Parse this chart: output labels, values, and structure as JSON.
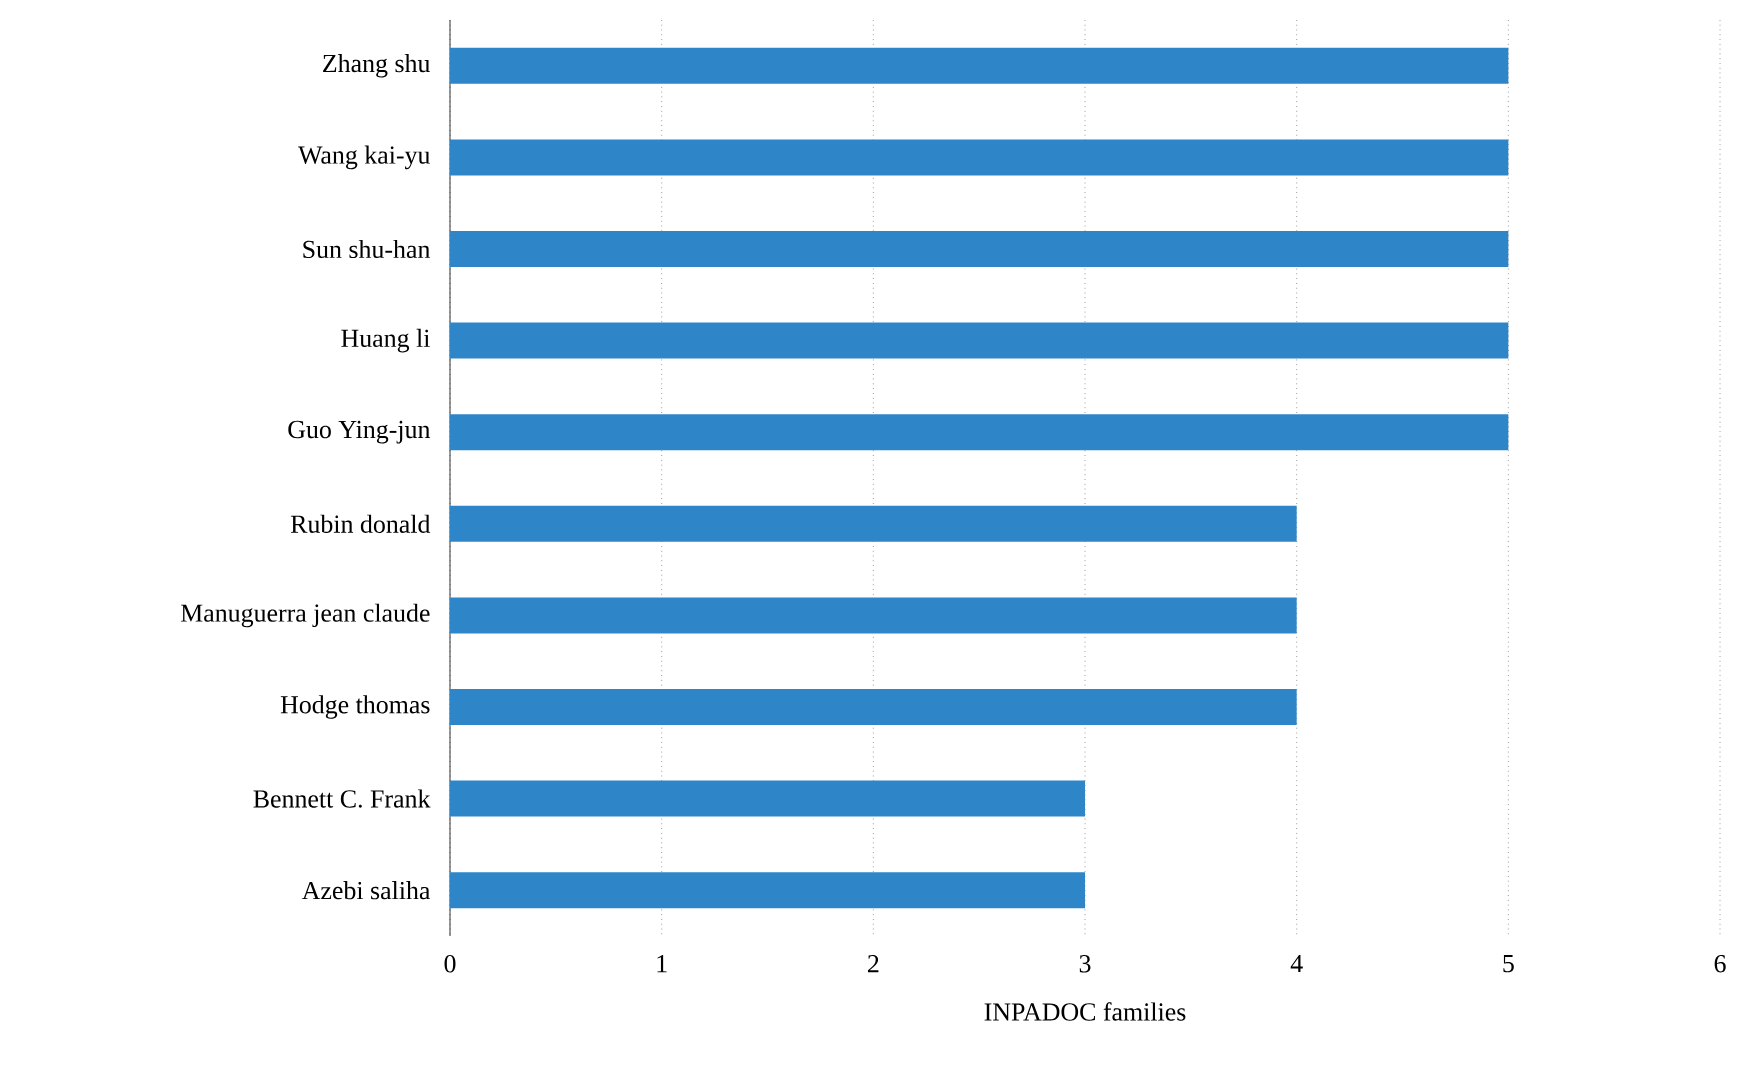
{
  "chart_data": {
    "type": "bar",
    "orientation": "horizontal",
    "xlabel": "INPADOC families",
    "categories": [
      "Zhang shu",
      "Wang kai-yu",
      "Sun shu-han",
      "Huang li",
      "Guo Ying-jun",
      "Rubin donald",
      "Manuguerra jean claude",
      "Hodge thomas",
      "Bennett C. Frank",
      "Azebi saliha"
    ],
    "values": [
      5,
      5,
      5,
      5,
      5,
      4,
      4,
      4,
      3,
      3
    ],
    "color": "#2e86c8",
    "xlim": [
      0,
      6
    ],
    "xticks": [
      0,
      1,
      2,
      3,
      4,
      5,
      6
    ],
    "grid": "x"
  }
}
